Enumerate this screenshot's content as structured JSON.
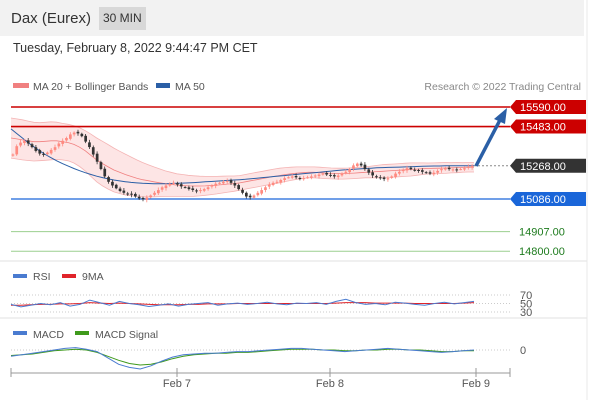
{
  "header": {
    "instrument": "Dax (Eurex)",
    "interval": "30 MIN",
    "timestamp": "Tuesday, February 8, 2022 9:44:47 PM CET"
  },
  "legend": {
    "bollinger": "MA 20 + Bollinger Bands",
    "ma50": "MA 50",
    "credit": "Research © 2022 Trading Central"
  },
  "colors": {
    "up": "#ff8a80",
    "down": "#333333",
    "bollinger": "#f08080",
    "bollinger_fill": "#fde0e0",
    "ma50": "#2b5fa6",
    "resistance": "#cc0000",
    "current": "#333333",
    "support": "#1a66d9",
    "target": "#1e7b1e",
    "arrow": "#2b5fa6",
    "rsi": "#4a7bd0",
    "rsi_ma": "#e0242a",
    "macd": "#4a7bd0",
    "macd_signal": "#3f9a1c"
  },
  "chart_data": [
    {
      "type": "candlestick",
      "title": "Dax (Eurex) 30 MIN",
      "x_ticks": [
        "Feb 7",
        "Feb 8",
        "Feb 9"
      ],
      "ylim": [
        14760,
        15640
      ],
      "levels": [
        {
          "label": "15590.00",
          "value": 15590,
          "kind": "resistance"
        },
        {
          "label": "15483.00",
          "value": 15483,
          "kind": "resistance"
        },
        {
          "label": "15268.00",
          "value": 15268,
          "kind": "current"
        },
        {
          "label": "15086.00",
          "value": 15086,
          "kind": "support"
        },
        {
          "label": "14907.00",
          "value": 14907,
          "kind": "target"
        },
        {
          "label": "14800.00",
          "value": 14800,
          "kind": "target"
        }
      ],
      "close": [
        15330,
        15375,
        15395,
        15405,
        15390,
        15370,
        15350,
        15335,
        15330,
        15340,
        15355,
        15370,
        15390,
        15405,
        15420,
        15440,
        15450,
        15445,
        15430,
        15400,
        15370,
        15330,
        15290,
        15250,
        15210,
        15180,
        15160,
        15145,
        15130,
        15120,
        15115,
        15110,
        15100,
        15090,
        15085,
        15095,
        15105,
        15120,
        15135,
        15150,
        15160,
        15170,
        15175,
        15165,
        15155,
        15150,
        15140,
        15135,
        15130,
        15135,
        15140,
        15150,
        15160,
        15170,
        15175,
        15180,
        15185,
        15175,
        15160,
        15140,
        15120,
        15100,
        15095,
        15105,
        15120,
        15135,
        15150,
        15165,
        15175,
        15180,
        15190,
        15200,
        15205,
        15210,
        15205,
        15200,
        15200,
        15205,
        15210,
        15215,
        15220,
        15225,
        15220,
        15215,
        15210,
        15215,
        15225,
        15235,
        15250,
        15270,
        15280,
        15270,
        15250,
        15230,
        15215,
        15205,
        15200,
        15195,
        15200,
        15210,
        15225,
        15235,
        15245,
        15255,
        15250,
        15245,
        15240,
        15235,
        15230,
        15225,
        15230,
        15240,
        15250,
        15255,
        15250,
        15248,
        15245,
        15250,
        15255,
        15262,
        15268
      ],
      "bb_mid": [
        15420,
        15415,
        15410,
        15405,
        15400,
        15400,
        15402,
        15405,
        15405,
        15400,
        15395,
        15385,
        15370,
        15350,
        15325,
        15300,
        15280,
        15262,
        15245,
        15232,
        15220,
        15210,
        15200,
        15192,
        15186,
        15180,
        15175,
        15170,
        15166,
        15162,
        15160,
        15158,
        15157,
        15157,
        15158,
        15160,
        15162,
        15165,
        15168,
        15170,
        15174,
        15180,
        15186,
        15192,
        15198,
        15204,
        15210,
        15215,
        15220,
        15224,
        15228,
        15230,
        15232,
        15232,
        15230,
        15228,
        15226,
        15225,
        15225,
        15226,
        15228,
        15230,
        15232,
        15234,
        15236,
        15238,
        15240,
        15242,
        15244,
        15246,
        15248,
        15250,
        15252,
        15253,
        15254,
        15255,
        15256,
        15257,
        15258,
        15259,
        15260,
        15260
      ],
      "bb_width": [
        110,
        110,
        110,
        108,
        106,
        104,
        104,
        104,
        102,
        100,
        100,
        102,
        106,
        110,
        116,
        120,
        122,
        122,
        120,
        116,
        112,
        106,
        100,
        94,
        88,
        82,
        76,
        70,
        66,
        62,
        60,
        58,
        56,
        54,
        52,
        50,
        48,
        46,
        44,
        42,
        40,
        40,
        40,
        40,
        40,
        40,
        40,
        40,
        38,
        36,
        34,
        32,
        30,
        30,
        30,
        30,
        30,
        30,
        30,
        30,
        30,
        30,
        30,
        32,
        34,
        36,
        36,
        36,
        36,
        36,
        36,
        34,
        32,
        30,
        30,
        30,
        30,
        28,
        28,
        26,
        26,
        26
      ],
      "ma50": [
        15470,
        15445,
        15420,
        15395,
        15372,
        15350,
        15330,
        15312,
        15295,
        15280,
        15266,
        15253,
        15241,
        15230,
        15220,
        15211,
        15203,
        15196,
        15190,
        15185,
        15181,
        15177,
        15174,
        15172,
        15171,
        15170,
        15170,
        15170,
        15171,
        15172,
        15173,
        15174,
        15176,
        15178,
        15180,
        15182,
        15184,
        15186,
        15188,
        15190,
        15192,
        15194,
        15197,
        15200,
        15203,
        15206,
        15209,
        15212,
        15215,
        15218,
        15221,
        15224,
        15227,
        15230,
        15233,
        15236,
        15239,
        15242,
        15245,
        15247,
        15249,
        15251,
        15253,
        15255,
        15257,
        15258,
        15259,
        15260,
        15261,
        15262,
        15263,
        15264,
        15265,
        15266,
        15267,
        15267,
        15268,
        15268,
        15268,
        15268,
        15268,
        15268
      ]
    },
    {
      "type": "line",
      "title": "RSI",
      "y_ticks": [
        "70",
        "50",
        "30"
      ],
      "ylim": [
        25,
        75
      ],
      "series": [
        {
          "name": "RSI",
          "values": [
            48,
            42,
            46,
            50,
            47,
            52,
            44,
            48,
            58,
            52,
            46,
            55,
            50,
            47,
            43,
            46,
            49,
            44,
            48,
            50,
            52,
            46,
            49,
            51,
            48,
            50,
            53,
            49,
            47,
            51,
            50,
            52,
            48,
            55,
            60,
            52,
            48,
            50,
            47,
            53,
            51,
            48,
            46,
            50,
            53,
            49,
            52,
            55
          ]
        },
        {
          "name": "9MA",
          "values": [
            46,
            46,
            47,
            48,
            48,
            49,
            49,
            50,
            52,
            51,
            50,
            51,
            50,
            49,
            48,
            47,
            47,
            47,
            48,
            48,
            49,
            49,
            49,
            50,
            50,
            50,
            50,
            50,
            50,
            50,
            50,
            50,
            50,
            51,
            52,
            52,
            52,
            51,
            51,
            51,
            51,
            50,
            50,
            50,
            50,
            50,
            51,
            52
          ]
        }
      ]
    },
    {
      "type": "line",
      "title": "MACD",
      "y_ticks": [
        "0"
      ],
      "ylim": [
        -28,
        12
      ],
      "series": [
        {
          "name": "MACD",
          "values": [
            -8,
            -6,
            -4,
            -2,
            0,
            2,
            3,
            1,
            -2,
            -10,
            -18,
            -22,
            -24,
            -20,
            -14,
            -9,
            -6,
            -5,
            -4,
            -4,
            -3,
            -2,
            -2,
            -1,
            0,
            1,
            2,
            2,
            1,
            0,
            -1,
            -2,
            -1,
            0,
            1,
            2,
            1,
            0,
            -1,
            -2,
            -3,
            -2,
            -1,
            0
          ]
        },
        {
          "name": "MACD Signal",
          "values": [
            -7,
            -6,
            -5,
            -3,
            -1,
            0,
            1,
            0,
            -3,
            -8,
            -13,
            -17,
            -19,
            -18,
            -15,
            -11,
            -8,
            -6,
            -5,
            -4,
            -4,
            -3,
            -3,
            -2,
            -1,
            0,
            1,
            1,
            1,
            0,
            0,
            -1,
            -1,
            0,
            0,
            1,
            1,
            0,
            0,
            -1,
            -2,
            -2,
            -1,
            -1
          ]
        }
      ]
    }
  ]
}
